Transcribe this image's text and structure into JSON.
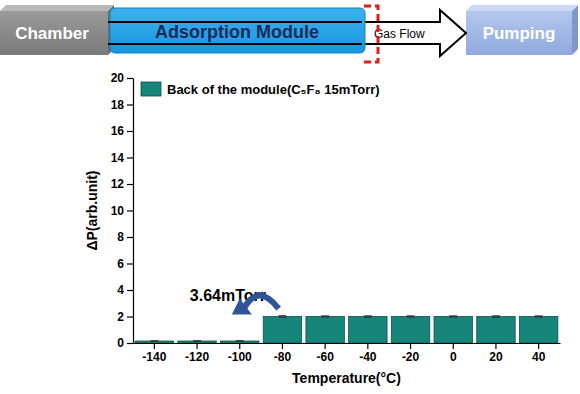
{
  "diagram": {
    "nodes": [
      {
        "label": "Chamber"
      },
      {
        "label": "Adsorption Module"
      },
      {
        "label": "Pumping"
      }
    ],
    "edges": [
      {
        "label": "Gas Flow"
      }
    ]
  },
  "chart_data": {
    "type": "bar",
    "x_label": "Temperature(°C)",
    "y_label": "ΔP(arb.unit)",
    "categories": [
      "-140",
      "-120",
      "-100",
      "-80",
      "-60",
      "-40",
      "-20",
      "0",
      "20",
      "40"
    ],
    "series": [
      {
        "name": "Back of the module(C₅F₈ 15mTorr)",
        "color": "#16857a",
        "values": [
          0.15,
          0.15,
          0.15,
          2.0,
          2.0,
          2.0,
          2.0,
          2.0,
          2.0,
          2.0
        ],
        "errors": [
          0.02,
          0.02,
          0.02,
          0.06,
          0.05,
          0.05,
          0.05,
          0.05,
          0.05,
          0.05
        ]
      }
    ],
    "ylim": [
      0,
      20
    ],
    "yticks": [
      0,
      2,
      4,
      6,
      8,
      10,
      12,
      14,
      16,
      18,
      20
    ],
    "legend": "upper left",
    "annotations": [
      {
        "text": "3.64mTorr"
      }
    ]
  }
}
